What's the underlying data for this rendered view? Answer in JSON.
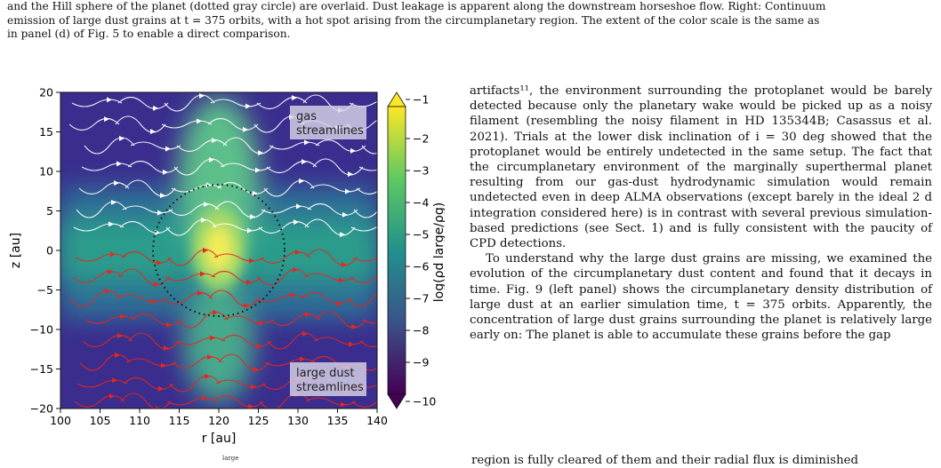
{
  "caption": {
    "line1": "and the Hill sphere of the planet (dotted gray circle) are overlaid. Dust leakage is apparent along the downstream horseshoe flow. Right: Continuum",
    "line2": "emission of large dust grains at t = 375 orbits, with a hot spot arising from the circumplanetary region. The extent of the color scale is the same as",
    "line3": "in panel (d) of Fig. 5 to enable a direct comparison."
  },
  "figure": {
    "legend_gas": [
      "gas",
      "streamlines"
    ],
    "legend_dust": [
      "large dust",
      "streamlines"
    ],
    "colorbar_label": "log(ρd large/ρg)",
    "colormap": [
      "#440154",
      "#3b528b",
      "#21918c",
      "#5ec962",
      "#fde725"
    ],
    "gas_color": "#ffffff",
    "dust_color": "#e8261c"
  },
  "chart_data": {
    "type": "heatmap",
    "xlabel": "r [au]",
    "ylabel": "z [au]",
    "xlim": [
      100,
      140
    ],
    "ylim": [
      -20,
      20
    ],
    "x_ticks": [
      "100",
      "105",
      "110",
      "115",
      "120",
      "125",
      "130",
      "135",
      "140"
    ],
    "y_ticks": [
      "20",
      "15",
      "10",
      "5",
      "0",
      "−5",
      "−10",
      "−15",
      "−20"
    ],
    "colorbar_ticks": [
      "−1",
      "−2",
      "−3",
      "−4",
      "−5",
      "−6",
      "−7",
      "−8",
      "−9",
      "−10"
    ],
    "colorbar_range": [
      -10,
      -1
    ],
    "hill_sphere": {
      "center_r": 120,
      "center_z": 0,
      "radius": 8.3
    },
    "overlays": [
      "gas streamlines",
      "large dust streamlines",
      "Hill sphere"
    ]
  },
  "body": {
    "p1": "artifacts¹¹, the environment surrounding the protoplanet would be barely detected because only the planetary wake would be picked up as a noisy filament (resembling the noisy filament in HD 135344B; Casassus et al. 2021). Trials at the lower disk inclination of i = 30 deg showed that the protoplanet would be entirely undetected in the same setup. The fact that the circumplanetary environment of the marginally superthermal planet resulting from our gas-dust hydrodynamic simulation would remain undetected even in deep ALMA observations (except barely in the ideal 2 d integration considered here) is in contrast with several previous simulation-based predictions (see Sect. 1) and is fully consistent with the paucity of CPD detections.",
    "p2": "To understand why the large dust grains are missing, we examined the evolution of the circumplanetary dust content and found that it decays in time. Fig. 9 (left panel) shows the circumplanetary density distribution of large dust at an earlier simulation time, t = 375 orbits. Apparently, the concentration of large dust grains surrounding the planet is relatively large early on: The planet is able to accumulate these grains before the gap",
    "p3": "region is fully cleared of them and their radial flux is diminished",
    "fragment": "large"
  }
}
